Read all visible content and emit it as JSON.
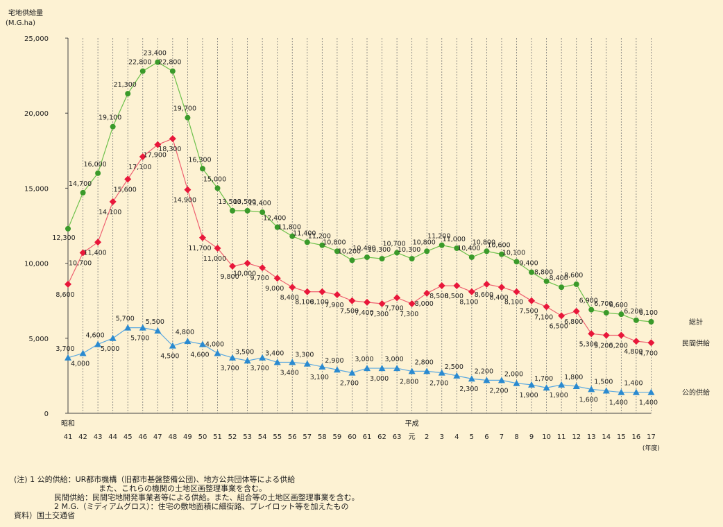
{
  "chart_data": {
    "type": "line",
    "ylabel_line1": "宅地供給量",
    "ylabel_line2": "(M.G.ha)",
    "ylim": [
      0,
      25000
    ],
    "yticks": [
      "0",
      "5,000",
      "10,000",
      "15,000",
      "20,000",
      "25,000"
    ],
    "yticks_values": [
      0,
      5000,
      10000,
      15000,
      20000,
      25000
    ],
    "era_labels": [
      {
        "text": "昭和",
        "at_index": 0
      },
      {
        "text": "平成",
        "at_index": 23
      }
    ],
    "year_unit": "(年度)",
    "categories": [
      "41",
      "42",
      "43",
      "44",
      "45",
      "46",
      "47",
      "48",
      "49",
      "50",
      "51",
      "52",
      "53",
      "54",
      "55",
      "56",
      "57",
      "58",
      "59",
      "60",
      "61",
      "62",
      "63",
      "元",
      "2",
      "3",
      "4",
      "5",
      "6",
      "7",
      "8",
      "9",
      "10",
      "11",
      "12",
      "13",
      "14",
      "15",
      "16",
      "17"
    ],
    "series": [
      {
        "name": "総計",
        "color": "#3a9a2a",
        "line_color": "#6cc04a",
        "marker": "circle",
        "values": [
          12300,
          14700,
          16000,
          19100,
          21300,
          22800,
          23400,
          22800,
          19700,
          16300,
          15000,
          13500,
          13500,
          13400,
          12400,
          11800,
          11400,
          11200,
          10800,
          10200,
          10400,
          10300,
          10700,
          10300,
          10800,
          11200,
          11000,
          10400,
          10800,
          10600,
          10100,
          9400,
          8800,
          8400,
          8600,
          6900,
          6700,
          6600,
          6200,
          6100
        ],
        "labels": [
          "12,300",
          "14,700",
          "16,000",
          "19,100",
          "21,300",
          "22,800",
          "23,400",
          "22,800",
          "19,700",
          "16,300",
          "15,000",
          "13,500",
          "13,500",
          "13,400",
          "12,400",
          "11,800",
          "11,400",
          "11,200",
          "10,800",
          "10,200",
          "10,400",
          "10,300",
          "10,700",
          "10,300",
          "10,800",
          "11,200",
          "11,000",
          "10,400",
          "10,800",
          "10,600",
          "10,100",
          "9,400",
          "8,800",
          "8,400",
          "8,600",
          "6,900",
          "6,700",
          "6,600",
          "6,200",
          "6,100"
        ]
      },
      {
        "name": "民間供給",
        "color": "#e8173a",
        "line_color": "#ee6070",
        "marker": "diamond",
        "values": [
          8600,
          10700,
          11400,
          14100,
          15600,
          17100,
          17900,
          18300,
          14900,
          11700,
          11000,
          9800,
          10000,
          9700,
          9000,
          8400,
          8100,
          8100,
          7900,
          7500,
          7400,
          7300,
          7700,
          7300,
          8000,
          8500,
          8500,
          8100,
          8600,
          8400,
          8100,
          7500,
          7100,
          6500,
          6800,
          5300,
          5200,
          5200,
          4800,
          4700
        ],
        "labels": [
          "8,600",
          "10,700",
          "11,400",
          "14,100",
          "15,600",
          "17,100",
          "17,900",
          "18,300",
          "14,900",
          "11,700",
          "11,000",
          "9,800",
          "10,000",
          "9,700",
          "9,000",
          "8,400",
          "8,100",
          "8,100",
          "7,900",
          "7,500",
          "7,400",
          "7,300",
          "7,700",
          "7,300",
          "8,000",
          "8,500",
          "8,500",
          "8,100",
          "8,600",
          "8,400",
          "8,100",
          "7,500",
          "7,100",
          "6,500",
          "6,800",
          "5,300",
          "5,200",
          "5,200",
          "4,800",
          "4,700"
        ]
      },
      {
        "name": "公的供給",
        "color": "#2a8ad0",
        "line_color": "#5aa8e0",
        "marker": "triangle",
        "values": [
          3700,
          4000,
          4600,
          5000,
          5700,
          5700,
          5500,
          4500,
          4800,
          4600,
          4000,
          3700,
          3500,
          3700,
          3400,
          3400,
          3300,
          3100,
          2900,
          2700,
          3000,
          3000,
          3000,
          2800,
          2800,
          2700,
          2500,
          2300,
          2200,
          2200,
          2000,
          1900,
          1700,
          1900,
          1800,
          1600,
          1500,
          1400,
          1400,
          1400
        ],
        "labels": [
          "3,700",
          "4,000",
          "4,600",
          "5,000",
          "5,700",
          "5,700",
          "5,500",
          "4,500",
          "4,800",
          "4,600",
          "4,000",
          "3,700",
          "3,500",
          "3,700",
          "3,400",
          "3,400",
          "3,300",
          "3,100",
          "2,900",
          "2,700",
          "3,000",
          "3,000",
          "3,000",
          "2,800",
          "2,800",
          "2,700",
          "2,500",
          "2,300",
          "2,200",
          "2,200",
          "2,000",
          "1,900",
          "1,700",
          "1,900",
          "1,800",
          "1,600",
          "1,500",
          "1,400",
          "1,400",
          "1,400"
        ]
      }
    ],
    "grid": "vertical-dashed"
  },
  "notes": {
    "line1": "(注)  1    公的供給：UR都市機構（旧都市基盤整備公団)、地方公共団体等による供給",
    "line2": "また、これらの機関の土地区画整理事業を含む。",
    "line3": "民間供給：民間宅地開発事業者等による供給。また、組合等の土地区画整理事業を含む。",
    "line4": "2    M.G.（ミディアムグロス）：住宅の敷地面積に細街路、プレイロット等を加えたもの",
    "line5": "資料）国土交通省"
  }
}
